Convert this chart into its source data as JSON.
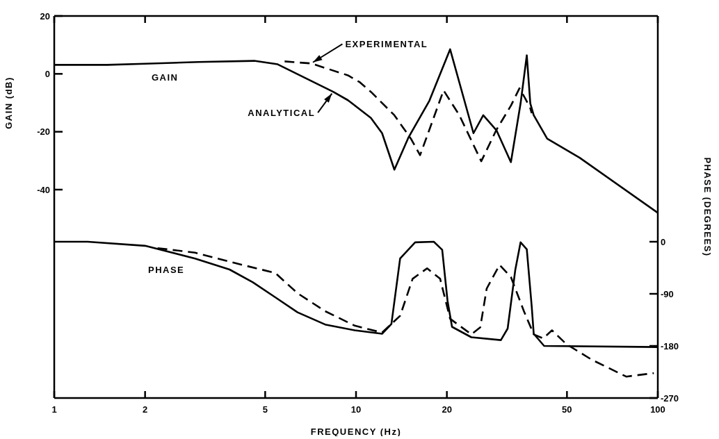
{
  "chart_data": {
    "type": "line",
    "xlabel": "FREQUENCY (Hz)",
    "ylabel": "GAIN (dB)",
    "y2label": "PHASE (DEGREES)",
    "log": "x",
    "xlim": [
      1,
      100
    ],
    "xticks": [
      1,
      2,
      5,
      10,
      20,
      50,
      100
    ],
    "ylim": [
      -112,
      20
    ],
    "yticks": [
      20,
      0,
      -20,
      -40
    ],
    "y2lim": [
      -270,
      390
    ],
    "y2ticks": [
      0,
      -90,
      -180,
      -270
    ],
    "annotations": [
      "GAIN",
      "PHASE"
    ],
    "series": [
      {
        "name": "ANALYTICAL",
        "color": "#000000",
        "line_style": "solid",
        "x": [
          1,
          1.5,
          2,
          3,
          4.6,
          5.5,
          8.4,
          9.4,
          11.2,
          12.2,
          13.4,
          14.9,
          17.5,
          20.5,
          24.5,
          26.4,
          29.2,
          32.6,
          35.1,
          36.8,
          37.8,
          38.8,
          43,
          55.1,
          100
        ],
        "values": [
          3.1,
          3.1,
          3.5,
          4.1,
          4.5,
          3.3,
          -6.2,
          -9.1,
          -15.2,
          -20.5,
          -33.1,
          -22.1,
          -9.3,
          8.5,
          -20.5,
          -14.3,
          -19.5,
          -30.5,
          -10.2,
          6.4,
          -10.2,
          -14.3,
          -22.4,
          -29,
          -48
        ]
      },
      {
        "name": "EXPERIMENTAL",
        "color": "#000000",
        "line_style": "dashed",
        "x": [
          5.8,
          7.1,
          9.4,
          10.3,
          11.2,
          13.4,
          15.2,
          16.3,
          17.5,
          19.5,
          22,
          26,
          29.2,
          32.6,
          34.8,
          36.4,
          37.8,
          38.2
        ],
        "values": [
          4.3,
          3.6,
          -0.5,
          -2.9,
          -6.2,
          -14.3,
          -22.4,
          -28.1,
          -19.3,
          -5.7,
          -14.3,
          -30.2,
          -19.3,
          -11,
          -5,
          -8.6,
          -11.9,
          -13.6
        ]
      },
      {
        "color": "#000000",
        "line_style": "solid",
        "axis": "y2",
        "x": [
          1,
          1.29,
          2,
          2.93,
          3.81,
          4.55,
          5.4,
          6.4,
          7.9,
          9.9,
          12.2,
          13.1,
          14,
          15.7,
          18.1,
          19.3,
          20.1,
          20.8,
          24.1,
          30.2,
          31.8,
          33.7,
          35.1,
          36.8,
          38.2,
          38.8,
          42,
          100
        ],
        "values": [
          0,
          0,
          -7,
          -29,
          -48,
          -70,
          -96,
          -122,
          -143,
          -153,
          -159,
          -142,
          -29,
          -1,
          0,
          -14,
          -102,
          -147,
          -165,
          -170,
          -150,
          -49,
          -1,
          -13,
          -111,
          -159,
          -180,
          -182
        ]
      },
      {
        "color": "#000000",
        "line_style": "dashed",
        "axis": "y2",
        "x": [
          2.2,
          2.93,
          3.98,
          5.4,
          6.4,
          7.9,
          9.9,
          12.2,
          14,
          15.4,
          17.2,
          19,
          20.5,
          24.1,
          25.8,
          27.1,
          29.9,
          32.6,
          36,
          38.8,
          41.7,
          44.6,
          49.8,
          60.5,
          78.6,
          97
        ],
        "values": [
          -11,
          -19,
          -37,
          -54,
          -89,
          -120,
          -145,
          -157,
          -128,
          -64,
          -46,
          -64,
          -133,
          -160,
          -148,
          -81,
          -40,
          -61,
          -120,
          -160,
          -167,
          -153,
          -177,
          -204,
          -233,
          -227
        ]
      }
    ]
  }
}
